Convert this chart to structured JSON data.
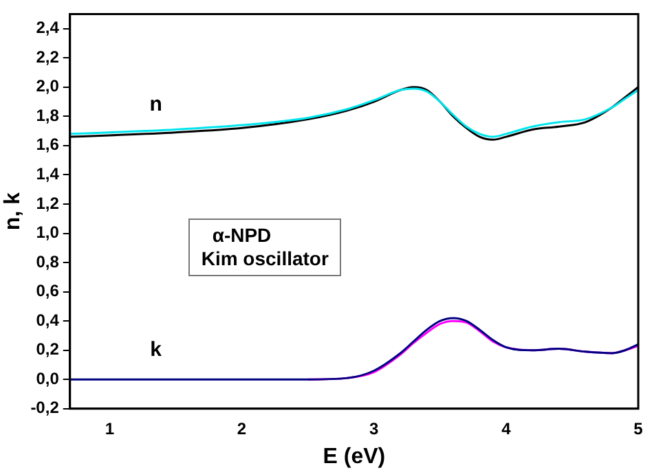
{
  "chart_data": {
    "type": "line",
    "xlabel": "E (eV)",
    "ylabel": "n, k",
    "xlim": [
      0.7,
      5
    ],
    "xticks": [
      1,
      2,
      3,
      4,
      5
    ],
    "ylim": [
      -0.2,
      2.5
    ],
    "yticks": [
      {
        "value": -0.2,
        "label": "-0,2"
      },
      {
        "value": 0,
        "label": "0,0"
      },
      {
        "value": 0.2,
        "label": "0,2"
      },
      {
        "value": 0.4,
        "label": "0,4"
      },
      {
        "value": 0.6,
        "label": "0,6"
      },
      {
        "value": 0.8,
        "label": "0,8"
      },
      {
        "value": 1,
        "label": "1,0"
      },
      {
        "value": 1.2,
        "label": "1,2"
      },
      {
        "value": 1.4,
        "label": "1,4"
      },
      {
        "value": 1.6,
        "label": "1,6"
      },
      {
        "value": 1.8,
        "label": "1,8"
      },
      {
        "value": 2,
        "label": "2,0"
      },
      {
        "value": 2.2,
        "label": "2,2"
      },
      {
        "value": 2.4,
        "label": "2,4"
      }
    ],
    "grid": false,
    "legend": false,
    "marker": "none",
    "line_style": "solid",
    "x": [
      0.7,
      1.0,
      1.5,
      2.0,
      2.5,
      2.8,
      3.0,
      3.2,
      3.3,
      3.4,
      3.5,
      3.6,
      3.7,
      3.8,
      3.9,
      4.0,
      4.2,
      4.4,
      4.6,
      4.8,
      4.9,
      5.0
    ],
    "series": [
      {
        "color": "#00e5ee",
        "values": [
          1.68,
          1.69,
          1.71,
          1.74,
          1.79,
          1.85,
          1.91,
          1.98,
          1.99,
          1.97,
          1.9,
          1.81,
          1.73,
          1.68,
          1.66,
          1.68,
          1.73,
          1.76,
          1.78,
          1.86,
          1.92,
          1.98
        ]
      },
      {
        "color": "#000000",
        "values": [
          1.66,
          1.67,
          1.69,
          1.72,
          1.78,
          1.84,
          1.9,
          1.98,
          2.0,
          1.98,
          1.9,
          1.8,
          1.72,
          1.66,
          1.64,
          1.66,
          1.71,
          1.73,
          1.76,
          1.86,
          1.93,
          2.0
        ]
      },
      {
        "color": "#000080",
        "values": [
          0,
          0,
          0,
          0,
          0,
          0.01,
          0.06,
          0.18,
          0.26,
          0.34,
          0.4,
          0.42,
          0.4,
          0.34,
          0.27,
          0.22,
          0.2,
          0.21,
          0.19,
          0.18,
          0.2,
          0.24
        ]
      },
      {
        "color": "#ff00ff",
        "values": [
          null,
          null,
          null,
          null,
          0,
          0.01,
          0.05,
          0.17,
          0.25,
          0.32,
          0.38,
          0.4,
          0.39,
          0.33,
          0.26,
          0.22,
          0.2,
          0.21,
          0.19,
          0.18,
          0.2,
          0.23
        ]
      }
    ],
    "annotations": [
      "n",
      "k",
      "α-NPD",
      "Kim oscillator"
    ]
  }
}
